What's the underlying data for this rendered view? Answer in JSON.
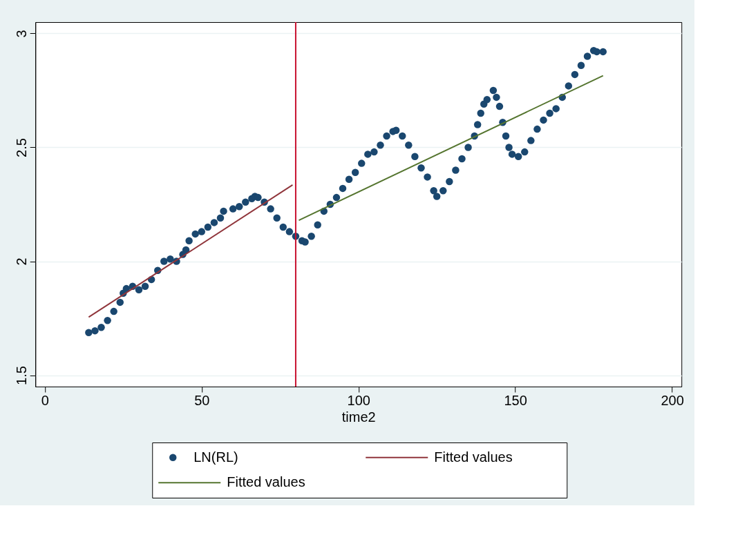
{
  "chart_data": {
    "type": "scatter",
    "xlabel": "time2",
    "xlim": [
      -3,
      203
    ],
    "ylim": [
      1.45,
      3.05
    ],
    "xticks": [
      0,
      50,
      100,
      150,
      200
    ],
    "yticks": [
      1.5,
      2,
      2.5,
      3
    ],
    "grid": "y",
    "legend": "bottom",
    "ref_lines": [
      {
        "axis": "x",
        "value": 80,
        "color": "#c8102e"
      }
    ],
    "series": [
      {
        "name": "LN(RL)",
        "marker": "circle",
        "color": "#1a476f",
        "x": [
          14,
          16,
          18,
          20,
          22,
          24,
          25,
          26,
          28,
          30,
          32,
          34,
          36,
          38,
          40,
          42,
          44,
          45,
          46,
          48,
          50,
          52,
          54,
          56,
          57,
          60,
          62,
          64,
          66,
          67,
          68,
          70,
          72,
          74,
          76,
          78,
          80,
          82,
          83,
          85,
          87,
          89,
          91,
          93,
          95,
          97,
          99,
          101,
          103,
          105,
          107,
          109,
          111,
          112,
          114,
          116,
          118,
          120,
          122,
          124,
          125,
          127,
          129,
          131,
          133,
          135,
          137,
          138,
          139,
          140,
          141,
          143,
          144,
          145,
          146,
          147,
          148,
          149,
          151,
          153,
          155,
          157,
          159,
          161,
          163,
          165,
          167,
          169,
          171,
          173,
          175,
          176,
          178
        ],
        "values": [
          1.687,
          1.695,
          1.71,
          1.74,
          1.78,
          1.82,
          1.86,
          1.88,
          1.89,
          1.875,
          1.89,
          1.92,
          1.96,
          2.0,
          2.01,
          2.0,
          2.03,
          2.05,
          2.09,
          2.12,
          2.13,
          2.15,
          2.17,
          2.19,
          2.22,
          2.23,
          2.24,
          2.26,
          2.275,
          2.285,
          2.28,
          2.26,
          2.23,
          2.19,
          2.15,
          2.13,
          2.11,
          2.09,
          2.085,
          2.11,
          2.16,
          2.22,
          2.25,
          2.28,
          2.32,
          2.36,
          2.39,
          2.43,
          2.47,
          2.48,
          2.51,
          2.55,
          2.57,
          2.575,
          2.55,
          2.51,
          2.46,
          2.41,
          2.37,
          2.31,
          2.285,
          2.31,
          2.35,
          2.4,
          2.45,
          2.5,
          2.55,
          2.6,
          2.65,
          2.69,
          2.71,
          2.75,
          2.72,
          2.68,
          2.61,
          2.55,
          2.5,
          2.47,
          2.46,
          2.48,
          2.53,
          2.58,
          2.62,
          2.65,
          2.67,
          2.72,
          2.77,
          2.82,
          2.86,
          2.9,
          2.925,
          2.92,
          2.92
        ]
      },
      {
        "name": "Fitted values",
        "type": "line",
        "color": "#90353b",
        "x": [
          14,
          79
        ],
        "values": [
          1.755,
          2.335
        ]
      },
      {
        "name": "Fitted values",
        "type": "line",
        "color": "#55752f",
        "x": [
          81,
          178
        ],
        "values": [
          2.18,
          2.815
        ]
      }
    ]
  }
}
